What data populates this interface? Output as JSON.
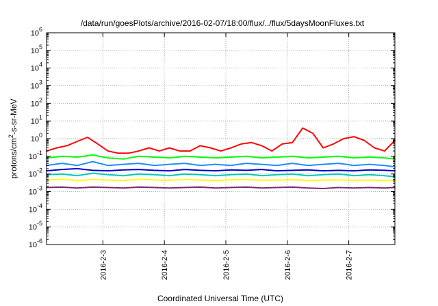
{
  "chart_data": {
    "type": "line",
    "title": "/data/run/goesPlots/archive/2016-02-07/18:00/flux/../flux/5daysMoonFluxes.txt",
    "xlabel": "Coordinated Universal Time (UTC)",
    "ylabel": "protons/cm²-s-sr-MeV",
    "x_scale": "time",
    "xlim": [
      "2016-02-02T02:00",
      "2016-02-07T18:00"
    ],
    "x_ticks": [
      "2016-2-3",
      "2016-2-4",
      "2016-2-5",
      "2016-2-6",
      "2016-2-7"
    ],
    "x_tick_dates": [
      "2016-02-03",
      "2016-02-04",
      "2016-02-05",
      "2016-02-06",
      "2016-02-07"
    ],
    "y_scale": "log",
    "ylim": [
      1e-06,
      1000000.0
    ],
    "y_tick_exponents": [
      -6,
      -5,
      -4,
      -3,
      -2,
      -1,
      0,
      1,
      2,
      3,
      4,
      5,
      6
    ],
    "grid": true,
    "series": [
      {
        "color": "#ff0000",
        "x": [
          "2016-02-02T02:00",
          "2016-02-02T06:00",
          "2016-02-02T10:00",
          "2016-02-02T14:00",
          "2016-02-02T18:00",
          "2016-02-02T22:00",
          "2016-02-03T02:00",
          "2016-02-03T06:00",
          "2016-02-03T10:00",
          "2016-02-03T14:00",
          "2016-02-03T18:00",
          "2016-02-03T22:00",
          "2016-02-04T02:00",
          "2016-02-04T06:00",
          "2016-02-04T10:00",
          "2016-02-04T14:00",
          "2016-02-04T18:00",
          "2016-02-04T22:00",
          "2016-02-05T02:00",
          "2016-02-05T06:00",
          "2016-02-05T10:00",
          "2016-02-05T14:00",
          "2016-02-05T18:00",
          "2016-02-05T22:00",
          "2016-02-06T02:00",
          "2016-02-06T06:00",
          "2016-02-06T10:00",
          "2016-02-06T14:00",
          "2016-02-06T18:00",
          "2016-02-06T22:00",
          "2016-02-07T02:00",
          "2016-02-07T06:00",
          "2016-02-07T10:00",
          "2016-02-07T14:00",
          "2016-02-07T18:00"
        ],
        "y": [
          0.2,
          0.3,
          0.4,
          0.7,
          1.2,
          0.5,
          0.2,
          0.15,
          0.15,
          0.2,
          0.3,
          0.2,
          0.3,
          0.2,
          0.2,
          0.4,
          0.3,
          0.2,
          0.3,
          0.5,
          0.6,
          0.4,
          0.2,
          0.5,
          0.6,
          4.0,
          2.0,
          0.3,
          0.5,
          1.0,
          1.3,
          0.8,
          0.3,
          0.2,
          0.8
        ]
      },
      {
        "color": "#00ff00",
        "x": [
          "2016-02-02T02:00",
          "2016-02-02T08:00",
          "2016-02-02T14:00",
          "2016-02-02T20:00",
          "2016-02-03T02:00",
          "2016-02-03T08:00",
          "2016-02-03T14:00",
          "2016-02-03T20:00",
          "2016-02-04T02:00",
          "2016-02-04T08:00",
          "2016-02-04T14:00",
          "2016-02-04T20:00",
          "2016-02-05T02:00",
          "2016-02-05T08:00",
          "2016-02-05T14:00",
          "2016-02-05T20:00",
          "2016-02-06T02:00",
          "2016-02-06T08:00",
          "2016-02-06T14:00",
          "2016-02-06T20:00",
          "2016-02-07T02:00",
          "2016-02-07T08:00",
          "2016-02-07T14:00",
          "2016-02-07T18:00"
        ],
        "y": [
          0.08,
          0.1,
          0.09,
          0.12,
          0.08,
          0.07,
          0.1,
          0.09,
          0.08,
          0.1,
          0.09,
          0.08,
          0.09,
          0.1,
          0.08,
          0.09,
          0.1,
          0.08,
          0.09,
          0.1,
          0.08,
          0.09,
          0.08,
          0.07
        ]
      },
      {
        "color": "#1e8cff",
        "x": [
          "2016-02-02T02:00",
          "2016-02-02T08:00",
          "2016-02-02T14:00",
          "2016-02-02T20:00",
          "2016-02-03T02:00",
          "2016-02-03T08:00",
          "2016-02-03T14:00",
          "2016-02-03T20:00",
          "2016-02-04T02:00",
          "2016-02-04T08:00",
          "2016-02-04T14:00",
          "2016-02-04T20:00",
          "2016-02-05T02:00",
          "2016-02-05T08:00",
          "2016-02-05T14:00",
          "2016-02-05T20:00",
          "2016-02-06T02:00",
          "2016-02-06T08:00",
          "2016-02-06T14:00",
          "2016-02-06T20:00",
          "2016-02-07T02:00",
          "2016-02-07T08:00",
          "2016-02-07T14:00",
          "2016-02-07T18:00"
        ],
        "y": [
          0.03,
          0.04,
          0.03,
          0.05,
          0.03,
          0.035,
          0.04,
          0.03,
          0.035,
          0.04,
          0.03,
          0.035,
          0.03,
          0.04,
          0.035,
          0.03,
          0.04,
          0.03,
          0.035,
          0.04,
          0.03,
          0.035,
          0.03,
          0.025
        ]
      },
      {
        "color": "#0000cc",
        "x": [
          "2016-02-02T02:00",
          "2016-02-02T08:00",
          "2016-02-02T14:00",
          "2016-02-02T20:00",
          "2016-02-03T02:00",
          "2016-02-03T08:00",
          "2016-02-03T14:00",
          "2016-02-03T20:00",
          "2016-02-04T02:00",
          "2016-02-04T08:00",
          "2016-02-04T14:00",
          "2016-02-04T20:00",
          "2016-02-05T02:00",
          "2016-02-05T08:00",
          "2016-02-05T14:00",
          "2016-02-05T20:00",
          "2016-02-06T02:00",
          "2016-02-06T08:00",
          "2016-02-06T14:00",
          "2016-02-06T20:00",
          "2016-02-07T02:00",
          "2016-02-07T08:00",
          "2016-02-07T14:00",
          "2016-02-07T18:00"
        ],
        "y": [
          0.015,
          0.018,
          0.02,
          0.016,
          0.015,
          0.017,
          0.018,
          0.016,
          0.015,
          0.018,
          0.016,
          0.015,
          0.017,
          0.016,
          0.018,
          0.015,
          0.016,
          0.017,
          0.015,
          0.016,
          0.015,
          0.017,
          0.016,
          0.015
        ]
      },
      {
        "color": "#00c8b4",
        "x": [
          "2016-02-02T02:00",
          "2016-02-02T08:00",
          "2016-02-02T14:00",
          "2016-02-02T20:00",
          "2016-02-03T02:00",
          "2016-02-03T08:00",
          "2016-02-03T14:00",
          "2016-02-03T20:00",
          "2016-02-04T02:00",
          "2016-02-04T08:00",
          "2016-02-04T14:00",
          "2016-02-04T20:00",
          "2016-02-05T02:00",
          "2016-02-05T08:00",
          "2016-02-05T14:00",
          "2016-02-05T20:00",
          "2016-02-06T02:00",
          "2016-02-06T08:00",
          "2016-02-06T14:00",
          "2016-02-06T20:00",
          "2016-02-07T02:00",
          "2016-02-07T08:00",
          "2016-02-07T14:00",
          "2016-02-07T18:00"
        ],
        "y": [
          0.009,
          0.01,
          0.008,
          0.011,
          0.009,
          0.008,
          0.01,
          0.009,
          0.008,
          0.01,
          0.009,
          0.008,
          0.009,
          0.01,
          0.008,
          0.009,
          0.01,
          0.008,
          0.009,
          0.01,
          0.008,
          0.009,
          0.008,
          0.007
        ]
      },
      {
        "color": "#ffff00",
        "x": [
          "2016-02-02T02:00",
          "2016-02-02T08:00",
          "2016-02-02T14:00",
          "2016-02-02T20:00",
          "2016-02-03T02:00",
          "2016-02-03T08:00",
          "2016-02-03T14:00",
          "2016-02-03T20:00",
          "2016-02-04T02:00",
          "2016-02-04T08:00",
          "2016-02-04T14:00",
          "2016-02-04T20:00",
          "2016-02-05T02:00",
          "2016-02-05T08:00",
          "2016-02-05T14:00",
          "2016-02-05T20:00",
          "2016-02-06T02:00",
          "2016-02-06T08:00",
          "2016-02-06T14:00",
          "2016-02-06T20:00",
          "2016-02-07T02:00",
          "2016-02-07T08:00",
          "2016-02-07T14:00",
          "2016-02-07T18:00"
        ],
        "y": [
          0.0045,
          0.005,
          0.0042,
          0.0048,
          0.0045,
          0.0043,
          0.005,
          0.0046,
          0.0044,
          0.0048,
          0.0045,
          0.0043,
          0.0046,
          0.0048,
          0.0044,
          0.0045,
          0.0047,
          0.0043,
          0.0045,
          0.0046,
          0.0044,
          0.0045,
          0.0043,
          0.0042
        ]
      },
      {
        "color": "#7a2a6a",
        "x": [
          "2016-02-02T02:00",
          "2016-02-02T08:00",
          "2016-02-02T14:00",
          "2016-02-02T20:00",
          "2016-02-03T02:00",
          "2016-02-03T08:00",
          "2016-02-03T14:00",
          "2016-02-03T20:00",
          "2016-02-04T02:00",
          "2016-02-04T08:00",
          "2016-02-04T14:00",
          "2016-02-04T20:00",
          "2016-02-05T02:00",
          "2016-02-05T08:00",
          "2016-02-05T14:00",
          "2016-02-05T20:00",
          "2016-02-06T02:00",
          "2016-02-06T08:00",
          "2016-02-06T14:00",
          "2016-02-06T20:00",
          "2016-02-07T02:00",
          "2016-02-07T08:00",
          "2016-02-07T14:00",
          "2016-02-07T18:00"
        ],
        "y": [
          0.0017,
          0.0018,
          0.0016,
          0.0018,
          0.0017,
          0.0016,
          0.0018,
          0.0017,
          0.0016,
          0.0017,
          0.0018,
          0.0016,
          0.0017,
          0.0018,
          0.0016,
          0.0017,
          0.0018,
          0.0016,
          0.0015,
          0.0017,
          0.0016,
          0.0017,
          0.0016,
          0.0017
        ]
      }
    ]
  }
}
